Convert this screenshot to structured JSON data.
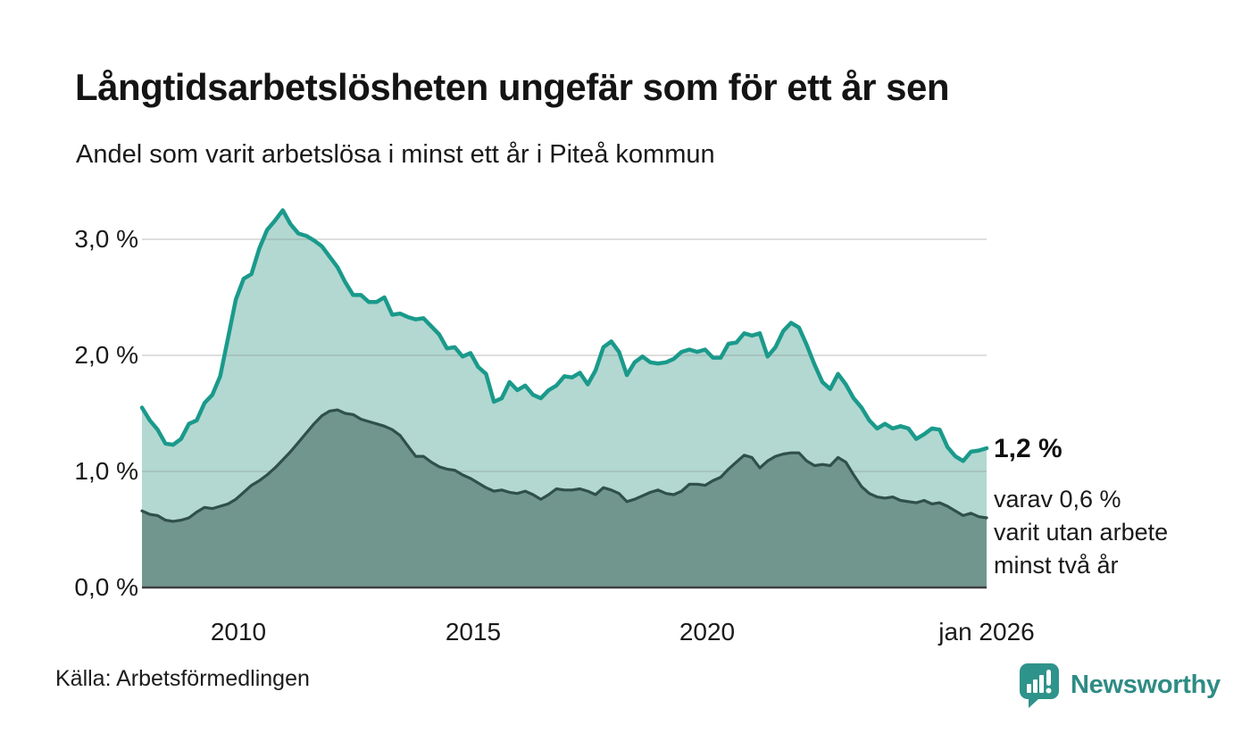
{
  "header": {
    "title": "Långtidsarbetslösheten ungefär som för ett år sen",
    "subtitle": "Andel som varit arbetslösa i minst ett år i Piteå kommun"
  },
  "chart_data": {
    "type": "area",
    "title": "Långtidsarbetslösheten ungefär som för ett år sen",
    "subtitle": "Andel som varit arbetslösa i minst ett år i Piteå kommun",
    "x_start": 2008.0,
    "x_end": 2026.0,
    "x_step_years": 0.1667,
    "ylim": [
      0,
      3.35
    ],
    "grid": true,
    "legend_position": "none",
    "x_ticks": [
      {
        "value": 2010,
        "label": "2010"
      },
      {
        "value": 2015,
        "label": "2015"
      },
      {
        "value": 2020,
        "label": "2020"
      },
      {
        "value": 2026,
        "label": "jan 2026"
      }
    ],
    "y_ticks": [
      {
        "value": 0,
        "label": "0,0 %"
      },
      {
        "value": 1,
        "label": "1,0 %"
      },
      {
        "value": 2,
        "label": "2,0 %"
      },
      {
        "value": 3,
        "label": "3,0 %"
      }
    ],
    "series": [
      {
        "name": "Arbetslösa minst ett år",
        "line_color": "#1a9a8b",
        "fill_color": "#b2d8d1",
        "line_width": 4.5,
        "end_value_label": "1,2 %",
        "values": [
          1.55,
          1.44,
          1.36,
          1.24,
          1.23,
          1.28,
          1.41,
          1.44,
          1.59,
          1.66,
          1.82,
          2.15,
          2.48,
          2.66,
          2.7,
          2.92,
          3.08,
          3.16,
          3.25,
          3.13,
          3.05,
          3.03,
          2.99,
          2.94,
          2.85,
          2.76,
          2.63,
          2.52,
          2.52,
          2.46,
          2.46,
          2.5,
          2.35,
          2.36,
          2.33,
          2.31,
          2.32,
          2.25,
          2.18,
          2.06,
          2.07,
          1.99,
          2.02,
          1.9,
          1.84,
          1.6,
          1.63,
          1.77,
          1.7,
          1.74,
          1.66,
          1.63,
          1.7,
          1.74,
          1.82,
          1.81,
          1.85,
          1.75,
          1.87,
          2.07,
          2.12,
          2.03,
          1.83,
          1.94,
          1.99,
          1.94,
          1.93,
          1.94,
          1.97,
          2.03,
          2.05,
          2.03,
          2.05,
          1.98,
          1.98,
          2.1,
          2.11,
          2.19,
          2.17,
          2.19,
          1.99,
          2.07,
          2.21,
          2.28,
          2.24,
          2.09,
          1.92,
          1.77,
          1.71,
          1.84,
          1.75,
          1.63,
          1.55,
          1.44,
          1.37,
          1.41,
          1.37,
          1.39,
          1.37,
          1.28,
          1.32,
          1.37,
          1.36,
          1.21,
          1.13,
          1.09,
          1.17,
          1.18,
          1.2
        ]
      },
      {
        "name": "Varav utan arbete minst två år",
        "line_color": "#30504b",
        "fill_color": "#70968e",
        "line_width": 3.2,
        "end_value_label": "varav 0,6 %",
        "values": [
          0.66,
          0.63,
          0.62,
          0.58,
          0.57,
          0.58,
          0.6,
          0.65,
          0.69,
          0.68,
          0.7,
          0.72,
          0.76,
          0.82,
          0.88,
          0.92,
          0.97,
          1.03,
          1.1,
          1.17,
          1.25,
          1.33,
          1.41,
          1.48,
          1.52,
          1.53,
          1.5,
          1.49,
          1.45,
          1.43,
          1.41,
          1.39,
          1.36,
          1.31,
          1.22,
          1.13,
          1.13,
          1.08,
          1.04,
          1.02,
          1.01,
          0.97,
          0.94,
          0.9,
          0.86,
          0.83,
          0.84,
          0.82,
          0.81,
          0.83,
          0.8,
          0.76,
          0.8,
          0.85,
          0.84,
          0.84,
          0.85,
          0.83,
          0.8,
          0.86,
          0.84,
          0.81,
          0.74,
          0.76,
          0.79,
          0.82,
          0.84,
          0.81,
          0.8,
          0.83,
          0.89,
          0.89,
          0.88,
          0.92,
          0.95,
          1.02,
          1.08,
          1.14,
          1.12,
          1.03,
          1.09,
          1.13,
          1.15,
          1.16,
          1.16,
          1.09,
          1.05,
          1.06,
          1.05,
          1.12,
          1.08,
          0.97,
          0.87,
          0.81,
          0.78,
          0.77,
          0.78,
          0.75,
          0.74,
          0.73,
          0.75,
          0.72,
          0.73,
          0.7,
          0.66,
          0.62,
          0.64,
          0.61,
          0.6
        ]
      }
    ],
    "annotation": {
      "value_label": "1,2 %",
      "detail_line1": "varav 0,6 %",
      "detail_line2": "varit utan arbete",
      "detail_line3": "minst två år"
    },
    "gridline_color": "#8a8a8a",
    "baseline_color": "#3f3f3f"
  },
  "footer": {
    "source": "Källa: Arbetsförmedlingen",
    "logo_text": "Newsworthy",
    "logo_color": "#2e938a"
  }
}
